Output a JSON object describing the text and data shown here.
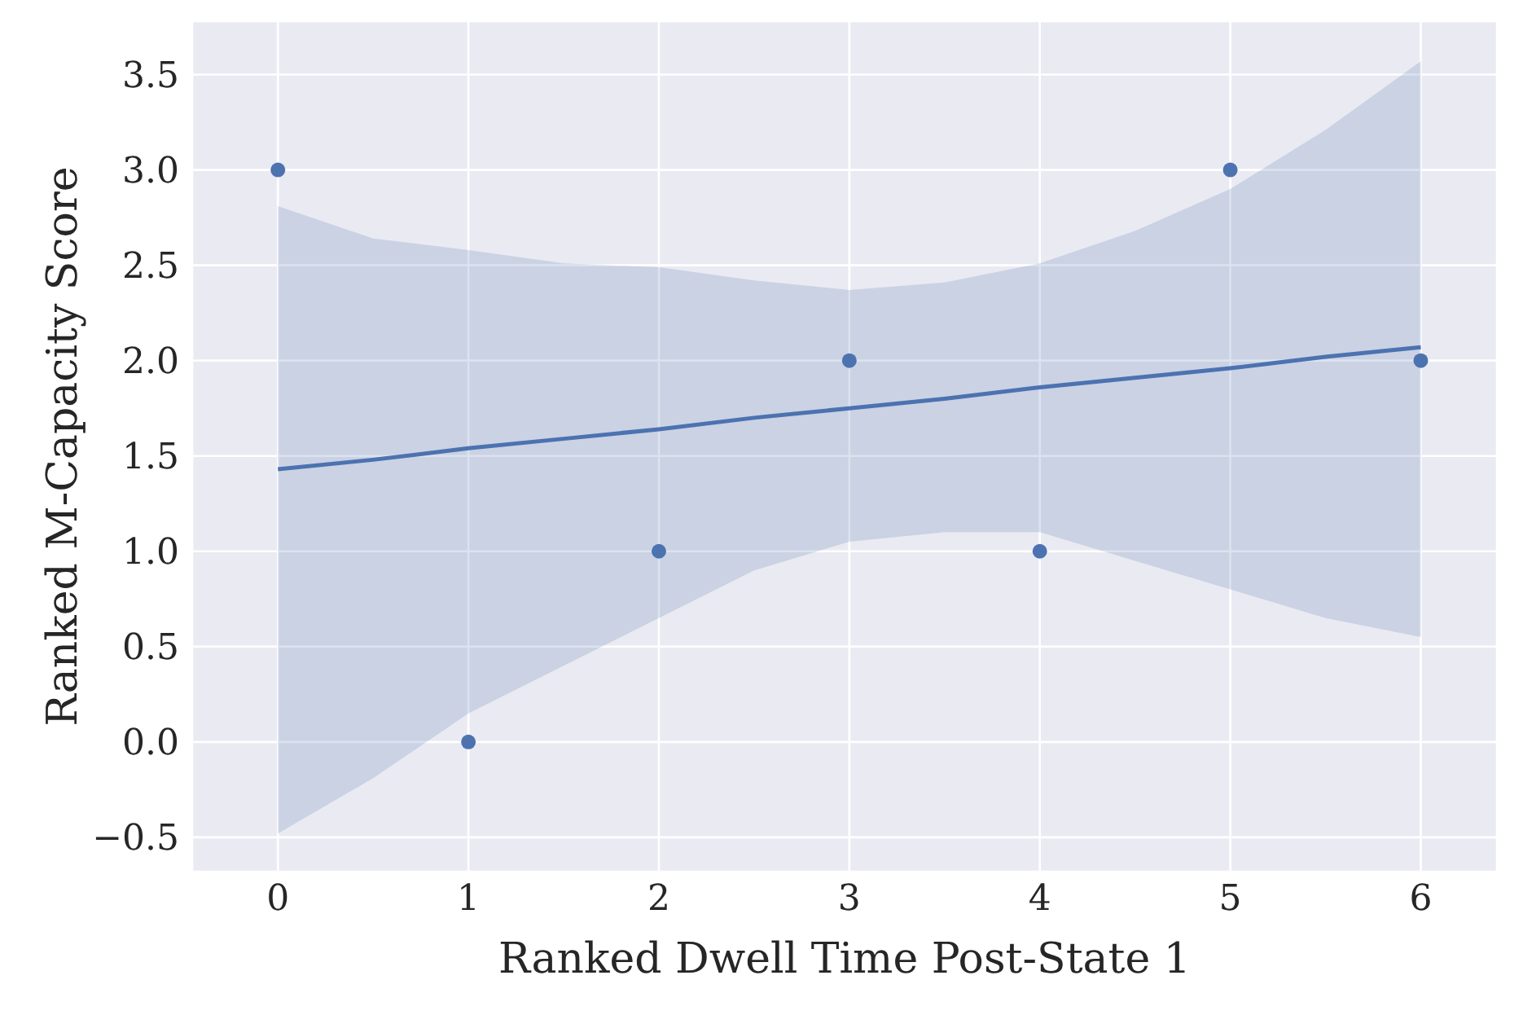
{
  "chart_data": {
    "type": "scatter",
    "xlabel": "Ranked Dwell Time Post-State 1",
    "ylabel": "Ranked M-Capacity Score",
    "xlim": [
      -0.45,
      6.4
    ],
    "ylim": [
      -0.68,
      3.78
    ],
    "xticks": [
      0,
      1,
      2,
      3,
      4,
      5,
      6
    ],
    "yticks": [
      {
        "value": -0.5,
        "label": "−0.5"
      },
      {
        "value": 0,
        "label": "0.0"
      },
      0.5,
      {
        "value": 1,
        "label": "1.0"
      },
      1.5,
      {
        "value": 2,
        "label": "2.0"
      },
      2.5,
      {
        "value": 3,
        "label": "3.0"
      },
      3.5
    ],
    "grid": true,
    "series": [
      {
        "marker": "circle",
        "color": "#4c72b0",
        "x": [
          0,
          1,
          2,
          3,
          4,
          5,
          6
        ],
        "values": [
          3,
          0,
          1,
          2,
          1,
          3,
          2
        ]
      },
      {
        "type": "line",
        "marker": "none",
        "color": "#4c72b0",
        "x": [
          0,
          0.5,
          1,
          1.5,
          2,
          2.5,
          3,
          3.5,
          4,
          4.5,
          5,
          5.5,
          6
        ],
        "values": [
          1.43,
          1.48,
          1.54,
          1.59,
          1.64,
          1.7,
          1.75,
          1.8,
          1.86,
          1.91,
          1.96,
          2.02,
          2.07
        ],
        "lower": [
          -0.48,
          -0.19,
          0.15,
          0.4,
          0.65,
          0.9,
          1.05,
          1.1,
          1.1,
          0.95,
          0.8,
          0.65,
          0.55
        ],
        "upper": [
          2.81,
          2.64,
          2.58,
          2.51,
          2.49,
          2.42,
          2.37,
          2.41,
          2.51,
          2.68,
          2.9,
          3.21,
          3.57
        ]
      }
    ]
  }
}
